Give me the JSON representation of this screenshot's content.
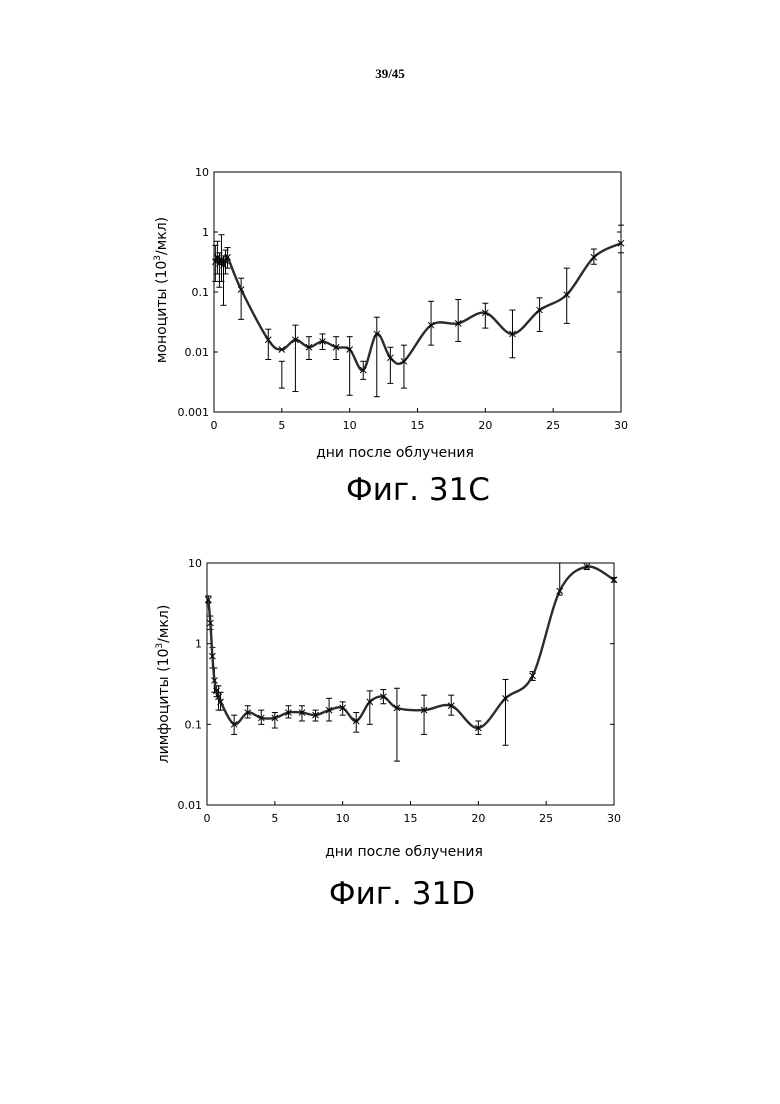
{
  "page": {
    "number": "39/45"
  },
  "figures": [
    {
      "label": "Фиг. 31C"
    },
    {
      "label": "Фиг. 31D"
    }
  ],
  "chart_data": [
    {
      "type": "line",
      "xlabel": "дни после облучения",
      "ylabel_pre": "моноциты (10",
      "ylabel_sup": "3",
      "ylabel_post": "/мкл)",
      "yscale": "log",
      "xlim": [
        0,
        30
      ],
      "ylim": [
        0.001,
        10
      ],
      "xticks": [
        0,
        5,
        10,
        15,
        20,
        25,
        30
      ],
      "yticks": [
        0.001,
        0.01,
        0.1,
        1,
        10
      ],
      "ytick_labels": [
        "0.001",
        "0.01",
        "0.1",
        "1",
        "10"
      ],
      "grid": false,
      "series": [
        {
          "x": [
            0.1,
            0.25,
            0.4,
            0.55,
            0.7,
            0.85,
            1,
            2,
            4,
            5,
            6,
            7,
            8,
            9,
            10,
            11,
            12,
            13,
            14,
            16,
            18,
            20,
            22,
            24,
            26,
            28,
            30
          ],
          "y": [
            0.32,
            0.38,
            0.3,
            0.35,
            0.28,
            0.33,
            0.38,
            0.11,
            0.016,
            0.011,
            0.016,
            0.012,
            0.015,
            0.012,
            0.011,
            0.005,
            0.02,
            0.008,
            0.007,
            0.028,
            0.03,
            0.045,
            0.02,
            0.05,
            0.09,
            0.38,
            0.65
          ],
          "err_low": [
            0.15,
            0.2,
            0.12,
            0.15,
            0.06,
            0.2,
            0.25,
            0.035,
            0.0075,
            0.0025,
            0.0022,
            0.0075,
            0.011,
            0.0075,
            0.0019,
            0.0035,
            0.0018,
            0.003,
            0.0025,
            0.013,
            0.015,
            0.025,
            0.008,
            0.022,
            0.03,
            0.29,
            0.45
          ],
          "err_high": [
            0.6,
            0.7,
            0.45,
            0.9,
            0.4,
            0.5,
            0.55,
            0.17,
            0.024,
            0.007,
            0.028,
            0.018,
            0.02,
            0.018,
            0.018,
            0.007,
            0.038,
            0.012,
            0.013,
            0.07,
            0.075,
            0.065,
            0.05,
            0.08,
            0.25,
            0.52,
            1.3
          ]
        }
      ]
    },
    {
      "type": "line",
      "xlabel": "дни после облучения",
      "ylabel_pre": "лимфоциты (10",
      "ylabel_sup": "3",
      "ylabel_post": "/мкл)",
      "yscale": "log",
      "xlim": [
        0,
        30
      ],
      "ylim": [
        0.01,
        10
      ],
      "xticks": [
        0,
        5,
        10,
        15,
        20,
        25,
        30
      ],
      "yticks": [
        0.01,
        0.1,
        1,
        10
      ],
      "ytick_labels": [
        "0.01",
        "0.1",
        "1",
        "10"
      ],
      "grid": false,
      "series": [
        {
          "x": [
            0.1,
            0.25,
            0.4,
            0.55,
            0.7,
            0.85,
            1,
            2,
            3,
            4,
            5,
            6,
            7,
            8,
            9,
            10,
            11,
            12,
            13,
            14,
            16,
            18,
            20,
            22,
            24,
            26,
            28,
            30
          ],
          "y": [
            3.5,
            1.8,
            0.7,
            0.35,
            0.26,
            0.22,
            0.19,
            0.1,
            0.14,
            0.12,
            0.12,
            0.14,
            0.14,
            0.13,
            0.15,
            0.16,
            0.11,
            0.19,
            0.22,
            0.16,
            0.15,
            0.17,
            0.09,
            0.21,
            0.4,
            4.5,
            9,
            6.2
          ],
          "err_low": [
            3.2,
            1.5,
            0.5,
            0.25,
            0.22,
            0.15,
            0.15,
            0.075,
            0.12,
            0.1,
            0.09,
            0.12,
            0.11,
            0.11,
            0.11,
            0.13,
            0.08,
            0.1,
            0.18,
            0.035,
            0.075,
            0.13,
            0.075,
            0.055,
            0.35,
            4,
            8.3,
            5.8
          ],
          "err_high": [
            3.9,
            2.2,
            0.9,
            0.5,
            0.3,
            0.3,
            0.25,
            0.13,
            0.17,
            0.15,
            0.14,
            0.17,
            0.17,
            0.15,
            0.21,
            0.19,
            0.14,
            0.26,
            0.27,
            0.28,
            0.23,
            0.23,
            0.11,
            0.36,
            0.45,
            10,
            10,
            6.6
          ]
        }
      ]
    }
  ]
}
